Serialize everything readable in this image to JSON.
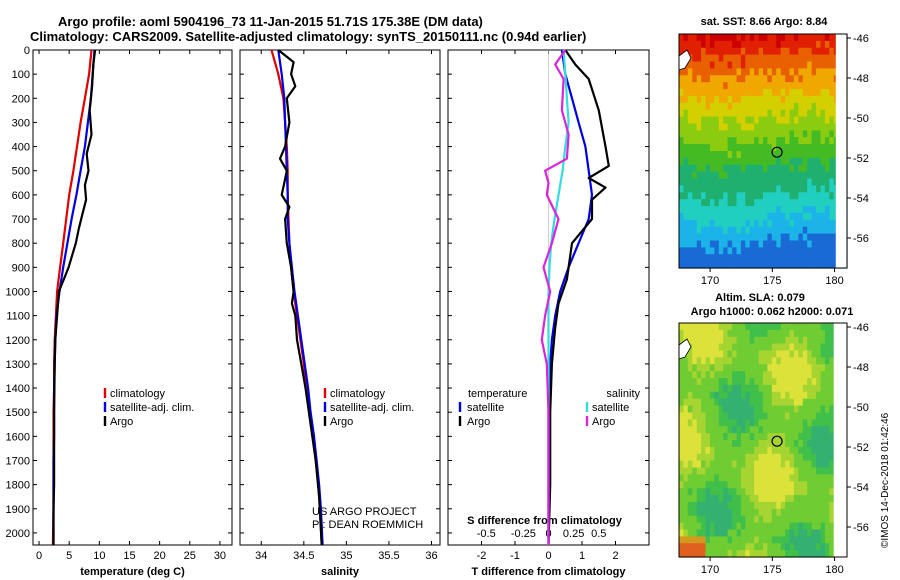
{
  "header": {
    "title_line1": "Argo profile: aoml 5904196_73 11-Jan-2015 51.71S 175.38E (DM data)",
    "title_line2": "Climatology: CARS2009. Satellite-adjusted climatology: synTS_20150111.nc (0.94d earlier)",
    "credit_line1": "US ARGO PROJECT",
    "credit_line2": "PI: DEAN ROEMMICH",
    "footer_stamp": "©IMOS 14-Dec-2018 01:42:46"
  },
  "colors": {
    "climatology": "#e00000",
    "satellite": "#0000e0",
    "argo": "#000000",
    "satellite_s": "#33dddd",
    "argo_s": "#dd22dd"
  },
  "chart_data": [
    {
      "id": "temperature-profile",
      "type": "line",
      "xlabel": "temperature (deg C)",
      "ylabel": "",
      "xlim": [
        -1,
        32
      ],
      "ylim": [
        2050,
        0
      ],
      "xticks": [
        0,
        5,
        10,
        15,
        20,
        25,
        30
      ],
      "yticks": [
        0,
        100,
        200,
        300,
        400,
        500,
        600,
        700,
        800,
        900,
        1000,
        1100,
        1200,
        1300,
        1400,
        1500,
        1600,
        1700,
        1800,
        1900,
        2000
      ],
      "legend": [
        "climatology",
        "satellite-adj. clim.",
        "Argo"
      ],
      "legend_loc": "lower-right",
      "series": [
        {
          "name": "climatology",
          "color": "#e00000",
          "x": [
            8.7,
            8.3,
            7.6,
            6.9,
            6.3,
            5.7,
            5.0,
            4.5,
            4.0,
            3.5,
            3.0,
            2.8,
            2.6,
            2.5,
            2.5,
            2.4,
            2.4,
            2.4,
            2.4,
            2.4,
            2.3
          ],
          "y": [
            0,
            100,
            200,
            300,
            400,
            500,
            600,
            700,
            800,
            900,
            1000,
            1100,
            1200,
            1300,
            1400,
            1500,
            1600,
            1700,
            1800,
            1900,
            2050
          ]
        },
        {
          "name": "satellite-adj. clim.",
          "color": "#0000e0",
          "x": [
            9.2,
            8.9,
            8.6,
            8.1,
            7.6,
            6.9,
            6.2,
            5.4,
            4.7,
            4.0,
            3.4,
            2.9,
            2.7,
            2.6,
            2.5,
            2.5,
            2.5,
            2.4,
            2.4,
            2.4,
            2.4
          ],
          "y": [
            0,
            100,
            200,
            300,
            400,
            500,
            600,
            700,
            800,
            900,
            1000,
            1100,
            1200,
            1300,
            1400,
            1500,
            1600,
            1700,
            1800,
            1900,
            2050
          ]
        },
        {
          "name": "Argo",
          "color": "#000000",
          "x": [
            9.3,
            9.0,
            8.8,
            8.4,
            8.7,
            7.9,
            8.2,
            7.6,
            7.8,
            7.2,
            6.6,
            6.1,
            5.5,
            4.9,
            4.1,
            3.3,
            3.0,
            2.7,
            2.6,
            2.5,
            2.5,
            2.5,
            2.4,
            2.4
          ],
          "y": [
            0,
            60,
            150,
            250,
            350,
            430,
            500,
            560,
            620,
            680,
            740,
            800,
            850,
            900,
            950,
            1000,
            1100,
            1200,
            1300,
            1500,
            1600,
            1800,
            1900,
            2050
          ]
        }
      ]
    },
    {
      "id": "salinity-profile",
      "type": "line",
      "xlabel": "salinity",
      "ylabel": "",
      "xlim": [
        33.75,
        36.1
      ],
      "ylim": [
        2050,
        0
      ],
      "xticks": [
        34,
        34.5,
        35,
        35.5,
        36
      ],
      "legend": [
        "climatology",
        "satellite-adj. clim.",
        "Argo"
      ],
      "legend_loc": "lower-right",
      "series": [
        {
          "name": "climatology",
          "color": "#e00000",
          "x": [
            34.12,
            34.2,
            34.26,
            34.28,
            34.3,
            34.31,
            34.31,
            34.32,
            34.33,
            34.35,
            34.38,
            34.42,
            34.46,
            34.5,
            34.53,
            34.57,
            34.61,
            34.64,
            34.67,
            34.69,
            34.71
          ],
          "y": [
            0,
            100,
            200,
            300,
            400,
            500,
            600,
            700,
            800,
            900,
            1000,
            1100,
            1200,
            1300,
            1400,
            1500,
            1600,
            1700,
            1800,
            1900,
            2050
          ]
        },
        {
          "name": "satellite-adj. clim.",
          "color": "#0000e0",
          "x": [
            34.2,
            34.24,
            34.27,
            34.28,
            34.29,
            34.3,
            34.31,
            34.31,
            34.33,
            34.36,
            34.39,
            34.43,
            34.47,
            34.51,
            34.55,
            34.58,
            34.62,
            34.65,
            34.68,
            34.7,
            34.72
          ],
          "y": [
            0,
            100,
            200,
            300,
            400,
            500,
            600,
            700,
            800,
            900,
            1000,
            1100,
            1200,
            1300,
            1400,
            1500,
            1600,
            1700,
            1800,
            1900,
            2050
          ]
        },
        {
          "name": "Argo",
          "color": "#000000",
          "x": [
            34.2,
            34.38,
            34.35,
            34.4,
            34.3,
            34.33,
            34.28,
            34.22,
            34.3,
            34.27,
            34.24,
            34.33,
            34.28,
            34.3,
            34.35,
            34.38,
            34.36,
            34.4,
            34.42,
            34.47,
            34.52,
            34.56,
            34.6,
            34.64,
            34.68,
            34.71
          ],
          "y": [
            0,
            50,
            100,
            150,
            200,
            300,
            400,
            450,
            500,
            550,
            600,
            650,
            700,
            800,
            900,
            1000,
            1050,
            1100,
            1200,
            1300,
            1400,
            1500,
            1600,
            1700,
            1850,
            2050
          ]
        }
      ]
    },
    {
      "id": "difference-profile",
      "type": "line",
      "xlabel": "T difference from climatology",
      "x2label": "S difference from climatology",
      "ylabel": "",
      "xlim": [
        -3,
        3
      ],
      "ylim": [
        2050,
        0
      ],
      "xticks": [
        -2,
        -1,
        0,
        1,
        2
      ],
      "x2ticks": [
        "-0.5",
        "-0.25",
        "0",
        "0.25",
        "0.5"
      ],
      "legend_left_title": "temperature",
      "legend_right_title": "salinity",
      "legend": [
        "satellite",
        "Argo"
      ],
      "legend_loc": "lower-center",
      "series": [
        {
          "name": "T satellite",
          "color": "#0000e0",
          "x": [
            0.4,
            0.5,
            0.7,
            0.9,
            1.1,
            1.2,
            1.3,
            1.2,
            0.9,
            0.6,
            0.35,
            0.2,
            0.1,
            0.05,
            0.05,
            0.0,
            0.0,
            0.0,
            0.0,
            0.0
          ],
          "y": [
            0,
            100,
            200,
            300,
            400,
            500,
            600,
            700,
            800,
            900,
            1000,
            1100,
            1200,
            1300,
            1400,
            1500,
            1600,
            1700,
            1800,
            2050
          ]
        },
        {
          "name": "T Argo",
          "color": "#000000",
          "x": [
            0.5,
            0.8,
            1.2,
            1.5,
            1.7,
            1.8,
            1.2,
            1.7,
            1.3,
            1.3,
            0.7,
            0.6,
            0.55,
            0.3,
            0.2,
            0.1,
            0.05,
            0.05,
            0.0
          ],
          "y": [
            0,
            60,
            120,
            250,
            400,
            480,
            530,
            570,
            620,
            700,
            800,
            900,
            950,
            1050,
            1150,
            1300,
            1500,
            1800,
            2050
          ]
        },
        {
          "name": "S satellite",
          "color": "#33dddd",
          "x": [
            0.45,
            0.5,
            0.55,
            0.6,
            0.5,
            0.42,
            0.3,
            0.18,
            0.08,
            0.03,
            0.0,
            0.0,
            0.0,
            0.0
          ],
          "y": [
            0,
            100,
            200,
            300,
            400,
            500,
            600,
            700,
            800,
            900,
            1000,
            1200,
            1500,
            2050
          ]
        },
        {
          "name": "S Argo",
          "color": "#dd22dd",
          "x": [
            0.5,
            0.2,
            0.45,
            0.4,
            0.6,
            0.55,
            -0.1,
            0.0,
            -0.05,
            0.3,
            0.1,
            -0.15,
            0.05,
            -0.1,
            -0.2,
            -0.05,
            0.0,
            0.0
          ],
          "y": [
            0,
            60,
            120,
            250,
            350,
            450,
            500,
            550,
            600,
            700,
            800,
            900,
            1000,
            1100,
            1200,
            1300,
            1500,
            2050
          ]
        }
      ]
    },
    {
      "id": "sst-map",
      "type": "heatmap",
      "title": "sat. SST: 8.66 Argo: 8.84",
      "xticks": [
        170,
        175,
        180
      ],
      "yticks": [
        -46,
        -48,
        -50,
        -52,
        -54,
        -56
      ],
      "xlim": [
        167.5,
        181
      ],
      "ylim": [
        -57.5,
        -45.8
      ],
      "marker": {
        "lon": 175.38,
        "lat": -51.71
      }
    },
    {
      "id": "sla-map",
      "type": "heatmap",
      "title": "Altim. SLA: 0.079",
      "subtitle": "Argo h1000: 0.062 h2000: 0.071",
      "xticks": [
        170,
        175,
        180
      ],
      "yticks": [
        -46,
        -48,
        -50,
        -52,
        -54,
        -56
      ],
      "xlim": [
        167.5,
        181
      ],
      "ylim": [
        -57.5,
        -45.8
      ],
      "marker": {
        "lon": 175.38,
        "lat": -51.71
      }
    }
  ]
}
